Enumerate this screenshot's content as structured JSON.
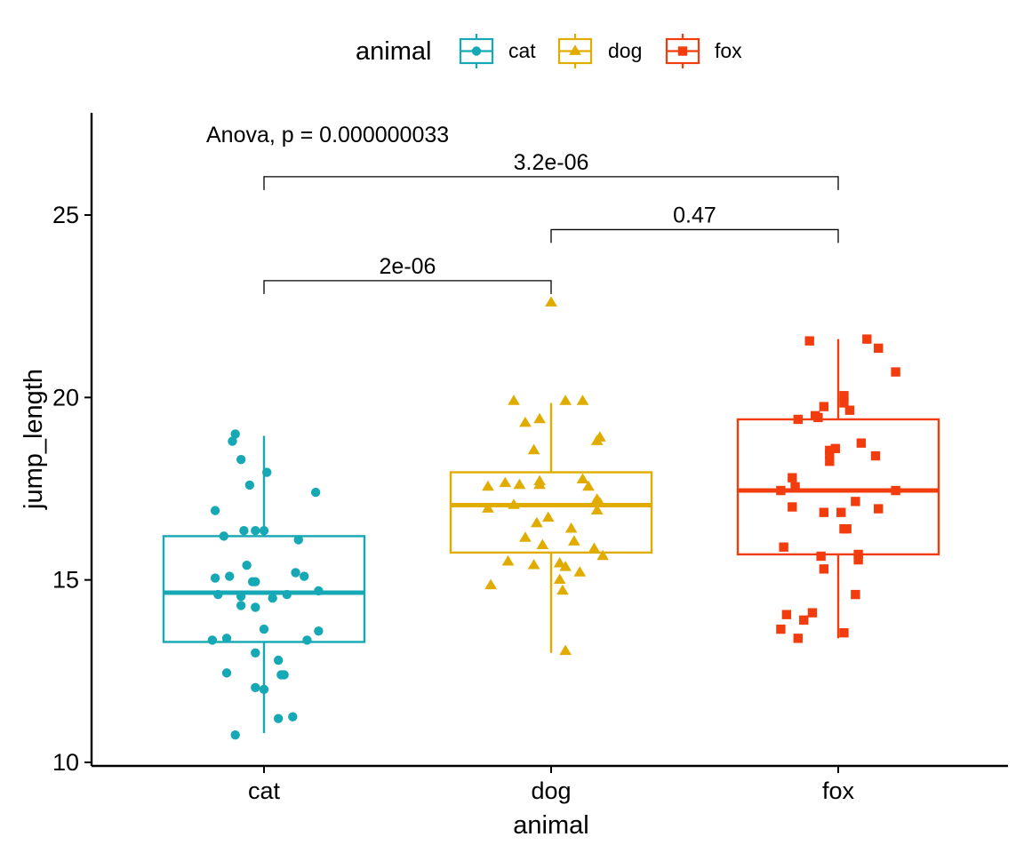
{
  "chart_data": {
    "type": "box",
    "xlabel": "animal",
    "ylabel": "jump_length",
    "ylim": [
      10,
      27.8
    ],
    "yticks": [
      10,
      15,
      20,
      25
    ],
    "categories": [
      "cat",
      "dog",
      "fox"
    ],
    "legend": {
      "title": "animal",
      "position": "top",
      "items": [
        "cat",
        "dog",
        "fox"
      ]
    },
    "colors": {
      "cat": "#16A8B4",
      "dog": "#E0AC00",
      "fox": "#F23C0E"
    },
    "anova_label": "Anova, p = 0.000000033",
    "comparisons": [
      {
        "group1": "cat",
        "group2": "dog",
        "label": "2e-06",
        "y": 23.2
      },
      {
        "group1": "dog",
        "group2": "fox",
        "label": "0.47",
        "y": 24.6
      },
      {
        "group1": "cat",
        "group2": "fox",
        "label": "3.2e-06",
        "y": 26.05
      }
    ],
    "series": [
      {
        "name": "cat",
        "shape": "circle",
        "box": {
          "whisker_low": 10.8,
          "q1": 13.3,
          "median": 14.65,
          "q3": 16.2,
          "whisker_high": 18.95
        },
        "points": [
          {
            "x": -0.1,
            "y": 19.0
          },
          {
            "x": -0.11,
            "y": 18.8
          },
          {
            "x": -0.08,
            "y": 18.3
          },
          {
            "x": 0.01,
            "y": 17.95
          },
          {
            "x": -0.05,
            "y": 17.6
          },
          {
            "x": 0.18,
            "y": 17.4
          },
          {
            "x": -0.17,
            "y": 16.9
          },
          {
            "x": -0.14,
            "y": 16.2
          },
          {
            "x": -0.07,
            "y": 16.35
          },
          {
            "x": -0.03,
            "y": 16.35
          },
          {
            "x": 0.0,
            "y": 16.35
          },
          {
            "x": 0.12,
            "y": 16.1
          },
          {
            "x": -0.06,
            "y": 15.4
          },
          {
            "x": 0.11,
            "y": 15.2
          },
          {
            "x": 0.14,
            "y": 15.1
          },
          {
            "x": -0.17,
            "y": 15.05
          },
          {
            "x": -0.12,
            "y": 15.1
          },
          {
            "x": -0.04,
            "y": 14.95
          },
          {
            "x": -0.03,
            "y": 14.95
          },
          {
            "x": 0.19,
            "y": 14.7
          },
          {
            "x": -0.16,
            "y": 14.6
          },
          {
            "x": 0.08,
            "y": 14.6
          },
          {
            "x": -0.08,
            "y": 14.55
          },
          {
            "x": 0.03,
            "y": 14.5
          },
          {
            "x": -0.08,
            "y": 14.3
          },
          {
            "x": -0.03,
            "y": 14.25
          },
          {
            "x": 0.0,
            "y": 13.65
          },
          {
            "x": 0.19,
            "y": 13.6
          },
          {
            "x": -0.13,
            "y": 13.4
          },
          {
            "x": -0.18,
            "y": 13.35
          },
          {
            "x": 0.15,
            "y": 13.35
          },
          {
            "x": -0.03,
            "y": 13.0
          },
          {
            "x": 0.05,
            "y": 12.8
          },
          {
            "x": -0.13,
            "y": 12.45
          },
          {
            "x": 0.06,
            "y": 12.4
          },
          {
            "x": 0.07,
            "y": 12.4
          },
          {
            "x": -0.03,
            "y": 12.05
          },
          {
            "x": 0.0,
            "y": 12.0
          },
          {
            "x": 0.1,
            "y": 11.25
          },
          {
            "x": 0.05,
            "y": 11.2
          },
          {
            "x": -0.1,
            "y": 10.75
          }
        ]
      },
      {
        "name": "dog",
        "shape": "triangle",
        "box": {
          "whisker_low": 13.0,
          "q1": 15.75,
          "median": 17.05,
          "q3": 17.95,
          "whisker_high": 19.85
        },
        "points": [
          {
            "x": 0.0,
            "y": 22.6
          },
          {
            "x": -0.13,
            "y": 19.9
          },
          {
            "x": 0.05,
            "y": 19.9
          },
          {
            "x": 0.11,
            "y": 19.9
          },
          {
            "x": -0.04,
            "y": 19.4
          },
          {
            "x": -0.09,
            "y": 19.3
          },
          {
            "x": 0.17,
            "y": 18.9
          },
          {
            "x": 0.16,
            "y": 18.8
          },
          {
            "x": -0.06,
            "y": 18.55
          },
          {
            "x": 0.11,
            "y": 17.75
          },
          {
            "x": 0.13,
            "y": 17.55
          },
          {
            "x": -0.04,
            "y": 17.7
          },
          {
            "x": -0.22,
            "y": 17.55
          },
          {
            "x": -0.16,
            "y": 17.65
          },
          {
            "x": -0.04,
            "y": 17.6
          },
          {
            "x": -0.11,
            "y": 17.6
          },
          {
            "x": 0.16,
            "y": 17.2
          },
          {
            "x": 0.17,
            "y": 17.1
          },
          {
            "x": 0.16,
            "y": 16.9
          },
          {
            "x": -0.22,
            "y": 16.95
          },
          {
            "x": -0.13,
            "y": 17.05
          },
          {
            "x": -0.01,
            "y": 16.7
          },
          {
            "x": -0.05,
            "y": 16.55
          },
          {
            "x": 0.07,
            "y": 16.4
          },
          {
            "x": -0.09,
            "y": 16.15
          },
          {
            "x": 0.08,
            "y": 16.05
          },
          {
            "x": -0.03,
            "y": 15.95
          },
          {
            "x": 0.15,
            "y": 15.85
          },
          {
            "x": 0.18,
            "y": 15.65
          },
          {
            "x": -0.15,
            "y": 15.5
          },
          {
            "x": 0.03,
            "y": 15.45
          },
          {
            "x": 0.05,
            "y": 15.35
          },
          {
            "x": -0.06,
            "y": 15.4
          },
          {
            "x": 0.1,
            "y": 15.2
          },
          {
            "x": 0.03,
            "y": 15.0
          },
          {
            "x": -0.21,
            "y": 14.85
          },
          {
            "x": 0.04,
            "y": 14.7
          },
          {
            "x": 0.05,
            "y": 13.05
          }
        ]
      },
      {
        "name": "fox",
        "shape": "square",
        "box": {
          "whisker_low": 13.4,
          "q1": 15.7,
          "median": 17.45,
          "q3": 19.4,
          "whisker_high": 21.6
        },
        "points": [
          {
            "x": 0.1,
            "y": 21.6
          },
          {
            "x": -0.1,
            "y": 21.55
          },
          {
            "x": 0.14,
            "y": 21.35
          },
          {
            "x": 0.2,
            "y": 20.7
          },
          {
            "x": 0.02,
            "y": 20.05
          },
          {
            "x": 0.02,
            "y": 19.85
          },
          {
            "x": -0.05,
            "y": 19.75
          },
          {
            "x": 0.04,
            "y": 19.65
          },
          {
            "x": -0.08,
            "y": 19.5
          },
          {
            "x": -0.07,
            "y": 19.45
          },
          {
            "x": -0.14,
            "y": 19.4
          },
          {
            "x": 0.08,
            "y": 18.75
          },
          {
            "x": -0.01,
            "y": 18.6
          },
          {
            "x": -0.03,
            "y": 18.55
          },
          {
            "x": -0.03,
            "y": 18.45
          },
          {
            "x": 0.13,
            "y": 18.4
          },
          {
            "x": -0.03,
            "y": 18.25
          },
          {
            "x": -0.16,
            "y": 17.8
          },
          {
            "x": -0.15,
            "y": 17.55
          },
          {
            "x": -0.2,
            "y": 17.45
          },
          {
            "x": 0.2,
            "y": 17.45
          },
          {
            "x": 0.06,
            "y": 17.15
          },
          {
            "x": -0.16,
            "y": 17.0
          },
          {
            "x": 0.14,
            "y": 16.95
          },
          {
            "x": 0.01,
            "y": 16.85
          },
          {
            "x": -0.05,
            "y": 16.85
          },
          {
            "x": 0.03,
            "y": 16.4
          },
          {
            "x": 0.02,
            "y": 16.4
          },
          {
            "x": -0.19,
            "y": 15.9
          },
          {
            "x": -0.06,
            "y": 15.65
          },
          {
            "x": 0.07,
            "y": 15.7
          },
          {
            "x": 0.07,
            "y": 15.55
          },
          {
            "x": -0.05,
            "y": 15.3
          },
          {
            "x": 0.06,
            "y": 14.6
          },
          {
            "x": -0.09,
            "y": 14.1
          },
          {
            "x": -0.18,
            "y": 14.05
          },
          {
            "x": -0.12,
            "y": 13.9
          },
          {
            "x": -0.2,
            "y": 13.65
          },
          {
            "x": 0.02,
            "y": 13.55
          },
          {
            "x": -0.14,
            "y": 13.4
          }
        ]
      }
    ]
  }
}
